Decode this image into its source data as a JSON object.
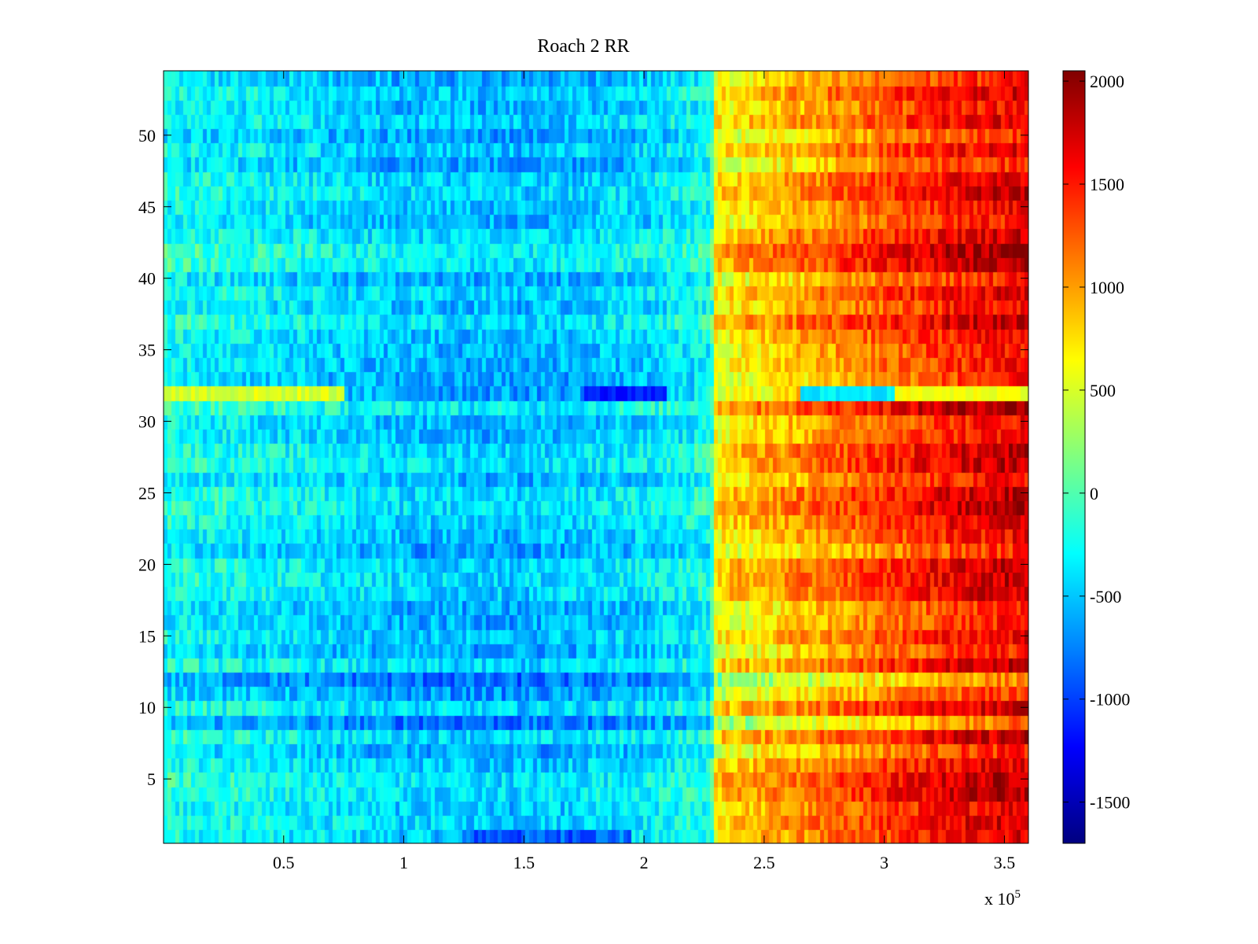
{
  "chart_data": {
    "type": "heatmap",
    "title": "Roach 2 RR",
    "xlabel": "",
    "ylabel": "",
    "x_multiplier_label": "x 10",
    "x_multiplier_exponent": "5",
    "xlim": [
      0,
      3.6
    ],
    "ylim": [
      0.5,
      54.5
    ],
    "x_ticks": [
      0.5,
      1,
      1.5,
      2,
      2.5,
      3,
      3.5
    ],
    "x_tick_labels": [
      "0.5",
      "1",
      "1.5",
      "2",
      "2.5",
      "3",
      "3.5"
    ],
    "y_ticks": [
      5,
      10,
      15,
      20,
      25,
      30,
      35,
      40,
      45,
      50
    ],
    "y_tick_labels": [
      "5",
      "10",
      "15",
      "20",
      "25",
      "30",
      "35",
      "40",
      "45",
      "50"
    ],
    "colorbar": {
      "colormap": "jet",
      "clim": [
        -1700,
        2050
      ],
      "ticks": [
        -1500,
        -1000,
        -500,
        0,
        500,
        1000,
        1500,
        2000
      ],
      "tick_labels": [
        "-1500",
        "-1000",
        "-500",
        "0",
        "500",
        "1000",
        "1500",
        "2000"
      ]
    },
    "rows": 54,
    "grid": false,
    "approx_column_profile": {
      "x": [
        0,
        0.5,
        1.0,
        1.5,
        2.0,
        2.28,
        2.3,
        2.6,
        3.0,
        3.3,
        3.6
      ],
      "value": [
        -250,
        -380,
        -520,
        -560,
        -430,
        -250,
        650,
        900,
        1250,
        1500,
        1650
      ]
    },
    "notable_rows": [
      {
        "row": 1,
        "description": "low values around x = 1.3–1.9"
      },
      {
        "row": 9,
        "description": "strong negative band"
      },
      {
        "row": 12,
        "description": "strong negative band"
      },
      {
        "row": 32,
        "description": "anomalous row: warm on left, deep blue around x = 1.8–2.1"
      }
    ]
  }
}
